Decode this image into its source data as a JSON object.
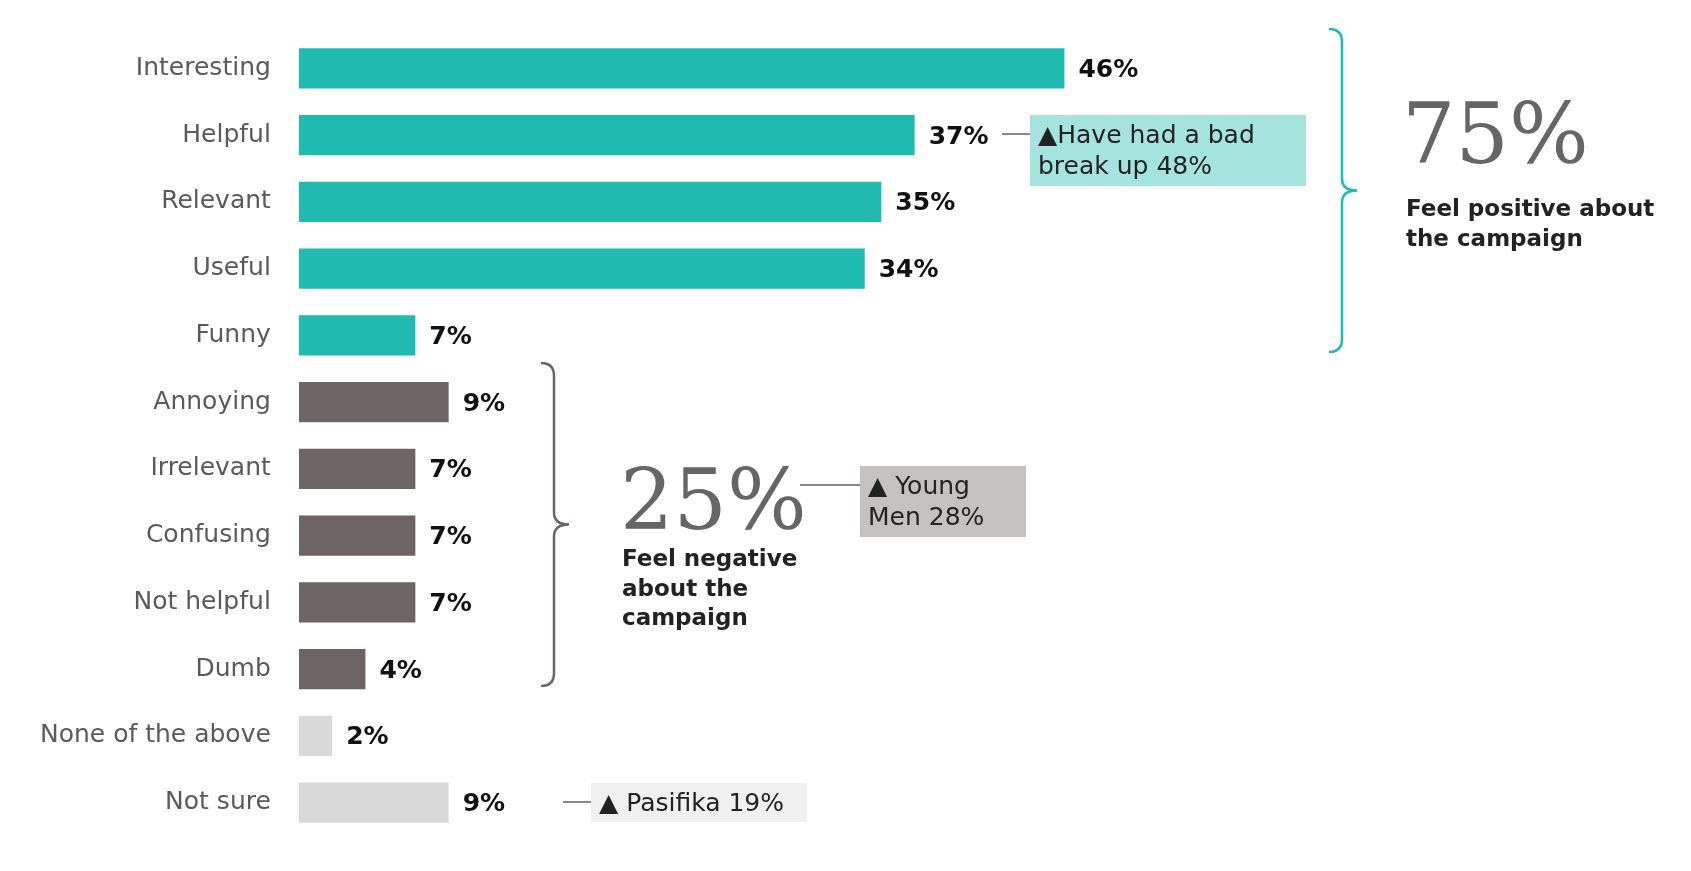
{
  "chart_data": {
    "type": "bar",
    "orientation": "horizontal",
    "categories": [
      "Interesting",
      "Helpful",
      "Relevant",
      "Useful",
      "Funny",
      "Annoying",
      "Irrelevant",
      "Confusing",
      "Not helpful",
      "Dumb",
      "None of the above",
      "Not sure"
    ],
    "values": [
      46,
      37,
      35,
      34,
      7,
      9,
      7,
      7,
      7,
      4,
      2,
      9
    ],
    "colors": [
      "#1fbab0",
      "#1fbab0",
      "#1fbab0",
      "#1fbab0",
      "#1fbab0",
      "#6d6565",
      "#6d6565",
      "#6d6565",
      "#6d6565",
      "#6d6565",
      "#d9d9d9",
      "#d9d9d9"
    ],
    "value_labels": [
      "46%",
      "37%",
      "35%",
      "34%",
      "7%",
      "9%",
      "7%",
      "7%",
      "7%",
      "4%",
      "2%",
      "9%"
    ],
    "annotations": [
      "▲Have had a bad break up 48%",
      "75%",
      "Feel positive about the campaign",
      "25%",
      "Feel negative about the campaign",
      "▲ Young Men 28%",
      "▲ Pasifika 19%"
    ],
    "grid": false,
    "legend": false
  }
}
